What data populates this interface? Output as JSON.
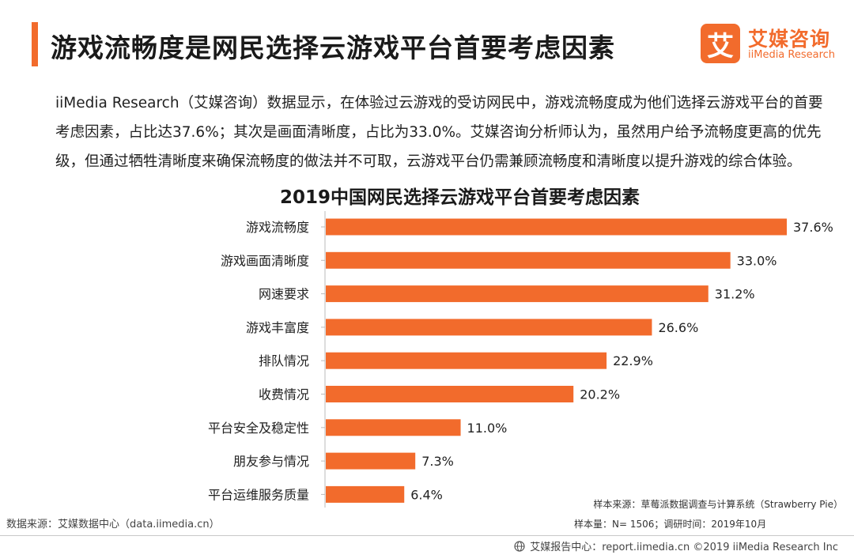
{
  "header": {
    "title": "游戏流畅度是网民选择云游戏平台首要考虑因素",
    "accent_color": "#f26b2c"
  },
  "logo": {
    "mark": "艾",
    "name": "艾媒咨询",
    "sub": "iiMedia Research"
  },
  "description": "iiMedia Research（艾媒咨询）数据显示，在体验过云游戏的受访网民中，游戏流畅度成为他们选择云游戏平台的首要考虑因素，占比达37.6%；其次是画面清晰度，占比为33.0%。艾媒咨询分析师认为，虽然用户给予流畅度更高的优先级，但通过牺牲清晰度来确保流畅度的做法并不可取，云游戏平台仍需兼顾流畅度和清晰度以提升游戏的综合体验。",
  "chart_data": {
    "type": "bar",
    "orientation": "horizontal",
    "title": "2019中国网民选择云游戏平台首要考虑因素",
    "categories": [
      "游戏流畅度",
      "游戏画面清晰度",
      "网速要求",
      "游戏丰富度",
      "排队情况",
      "收费情况",
      "平台安全及稳定性",
      "朋友参与情况",
      "平台运维服务质量"
    ],
    "values": [
      37.6,
      33.0,
      31.2,
      26.6,
      22.9,
      20.2,
      11.0,
      7.3,
      6.4
    ],
    "labels": [
      "37.6%",
      "33.0%",
      "31.2%",
      "26.6%",
      "22.9%",
      "20.2%",
      "11.0%",
      "7.3%",
      "6.4%"
    ],
    "xlim": [
      0,
      40
    ],
    "unit": "%",
    "bar_color": "#f26b2c",
    "grid": false,
    "xlabel": "",
    "ylabel": ""
  },
  "sources": {
    "data_source": "数据来源：艾媒数据中心（data.iimedia.cn）",
    "sample_source": "样本来源：草莓派数据调查与计算系统（Strawberry Pie）",
    "sample_size": "样本量：N= 1506；调研时间：2019年10月"
  },
  "footer": {
    "text": "艾媒报告中心：report.iimedia.cn ©2019  iiMedia Research  Inc",
    "icon": "globe-icon"
  }
}
